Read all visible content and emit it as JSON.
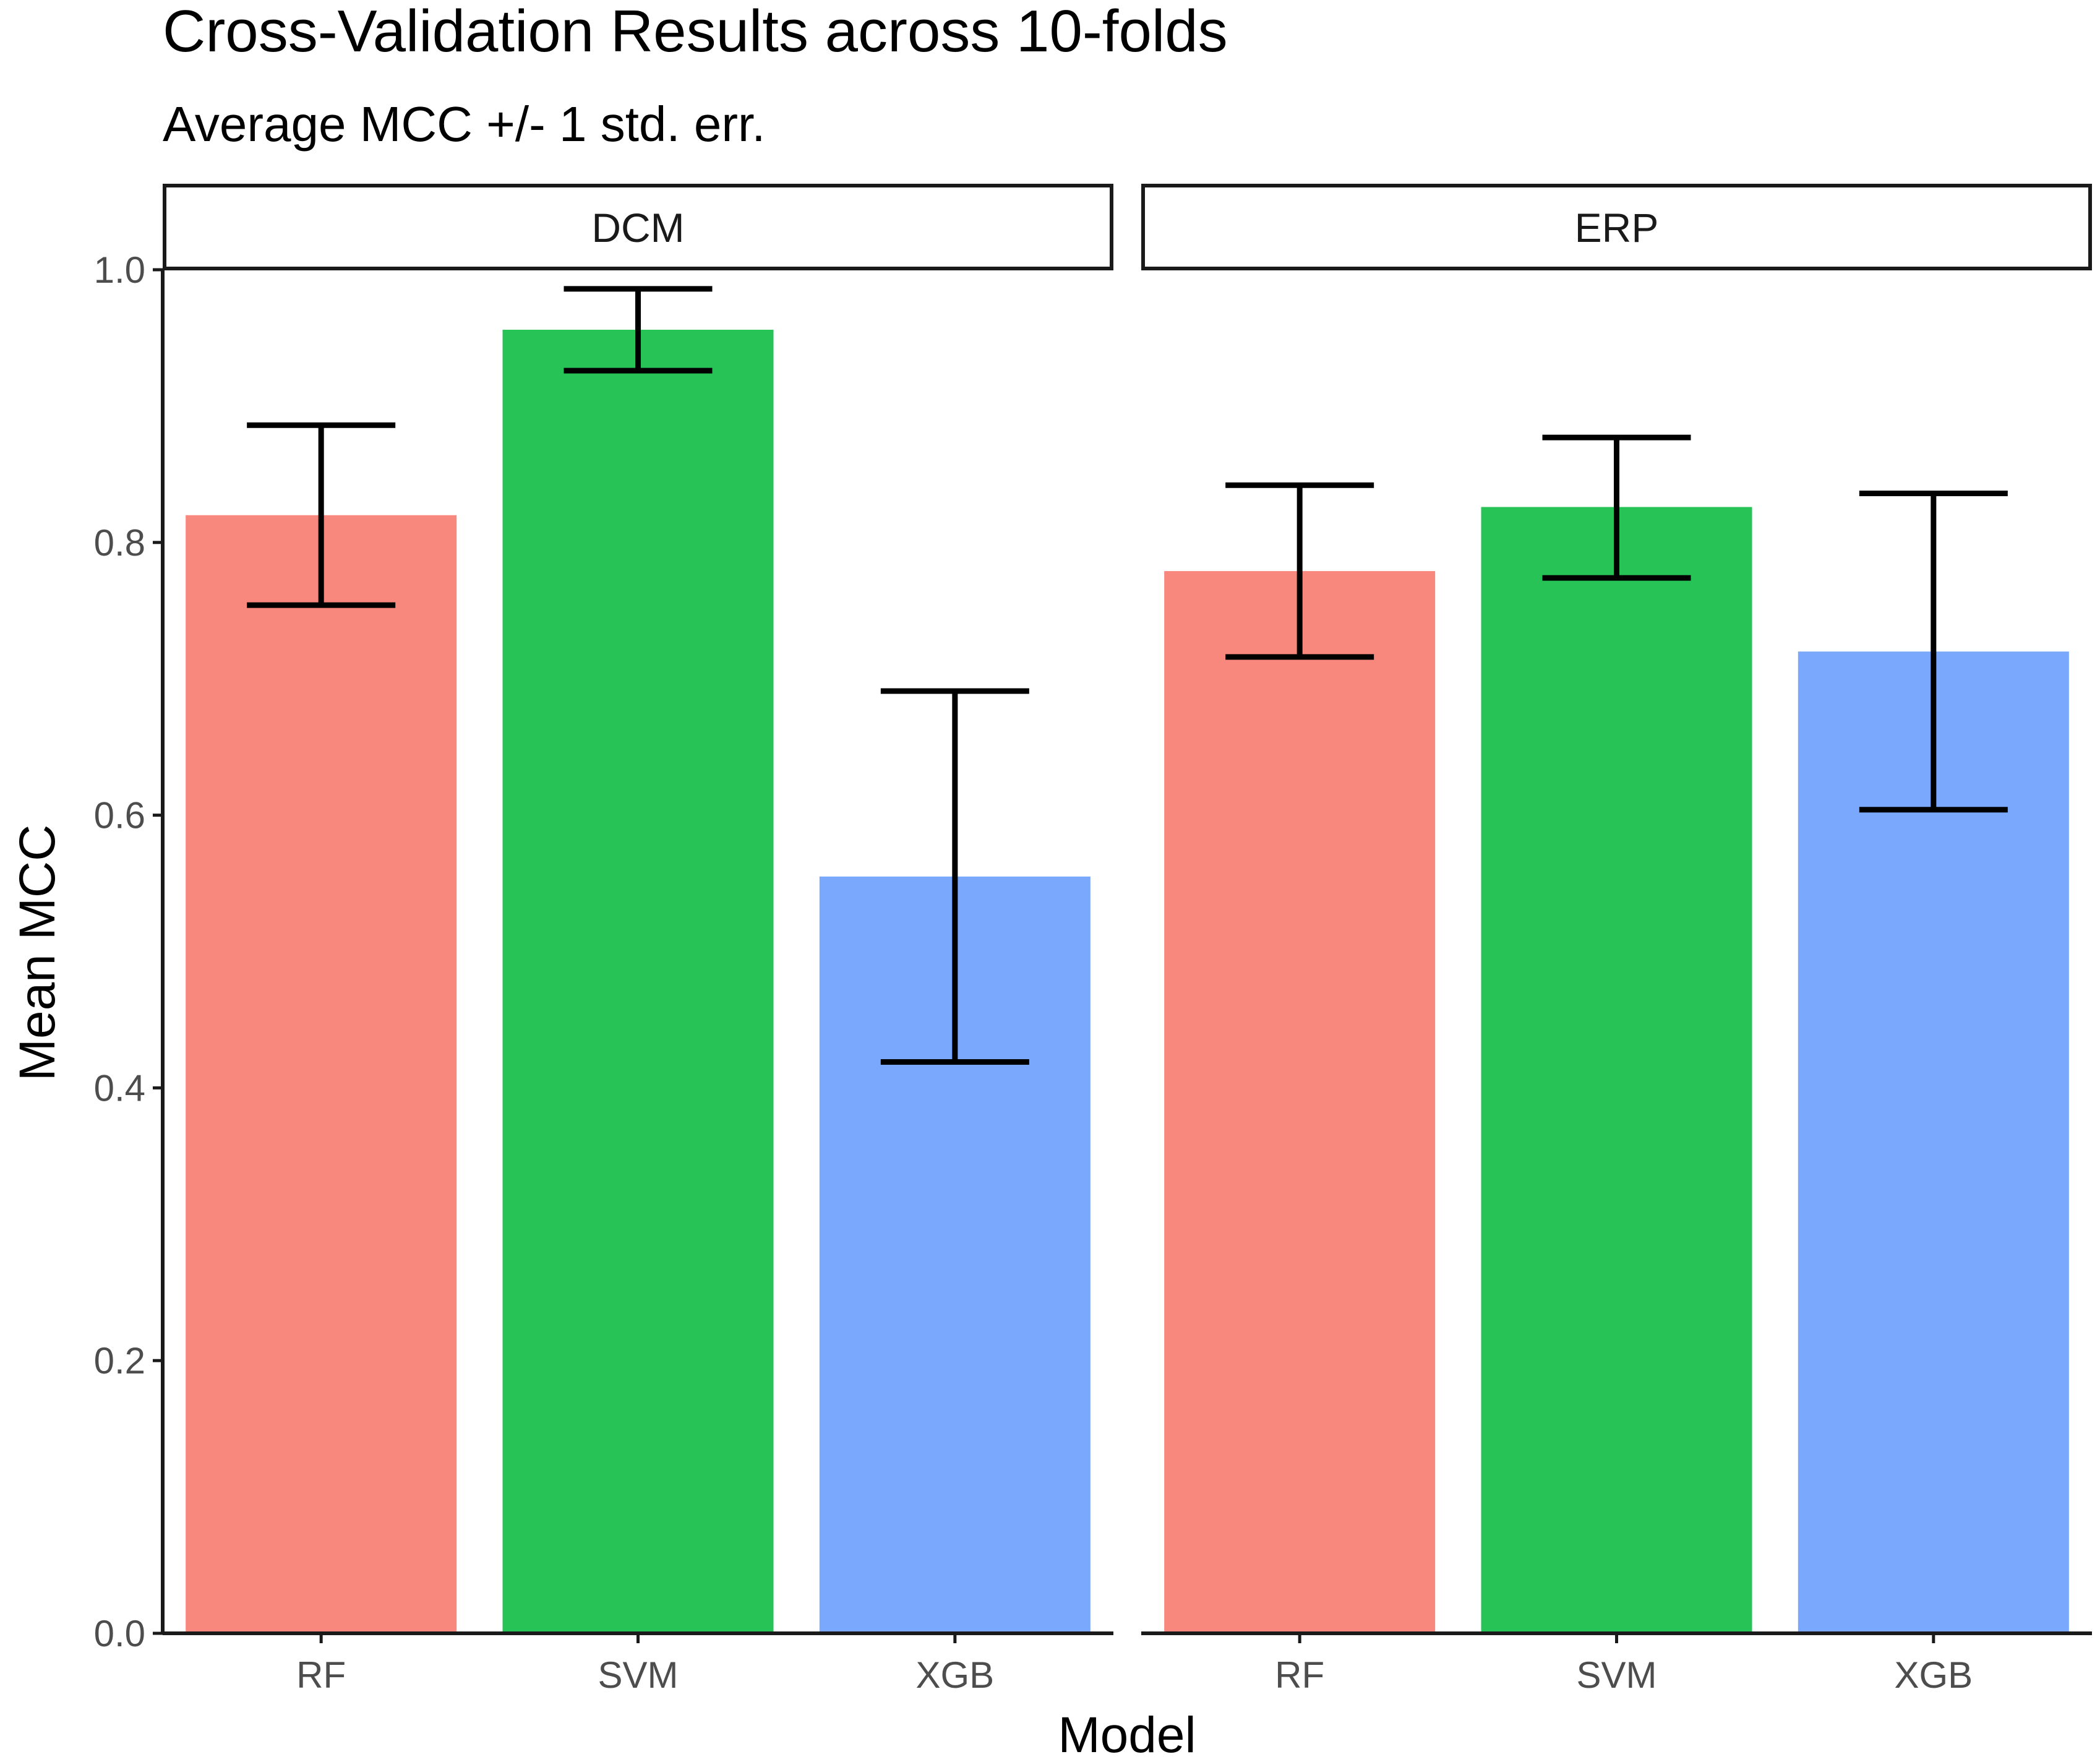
{
  "chart_data": {
    "type": "bar",
    "title": "Cross-Validation Results across 10-folds",
    "subtitle": "Average MCC +/- 1 std. err.",
    "xlabel": "Model",
    "ylabel": "Mean MCC",
    "ylim": [
      0,
      1.0
    ],
    "yticks": [
      "0.0",
      "0.2",
      "0.4",
      "0.6",
      "0.8",
      "1.0"
    ],
    "categories": [
      "RF",
      "SVM",
      "XGB"
    ],
    "colors": {
      "RF": "#F8877E",
      "SVM": "#27C356",
      "XGB": "#79A8FC"
    },
    "grid": false,
    "legend": "none",
    "panels": [
      {
        "name": "DCM",
        "values": [
          0.82,
          0.956,
          0.555
        ],
        "err_low": [
          0.754,
          0.926,
          0.419
        ],
        "err_high": [
          0.886,
          0.986,
          0.691
        ]
      },
      {
        "name": "ERP",
        "values": [
          0.779,
          0.826,
          0.72
        ],
        "err_low": [
          0.716,
          0.774,
          0.604
        ],
        "err_high": [
          0.842,
          0.877,
          0.836
        ]
      }
    ]
  }
}
